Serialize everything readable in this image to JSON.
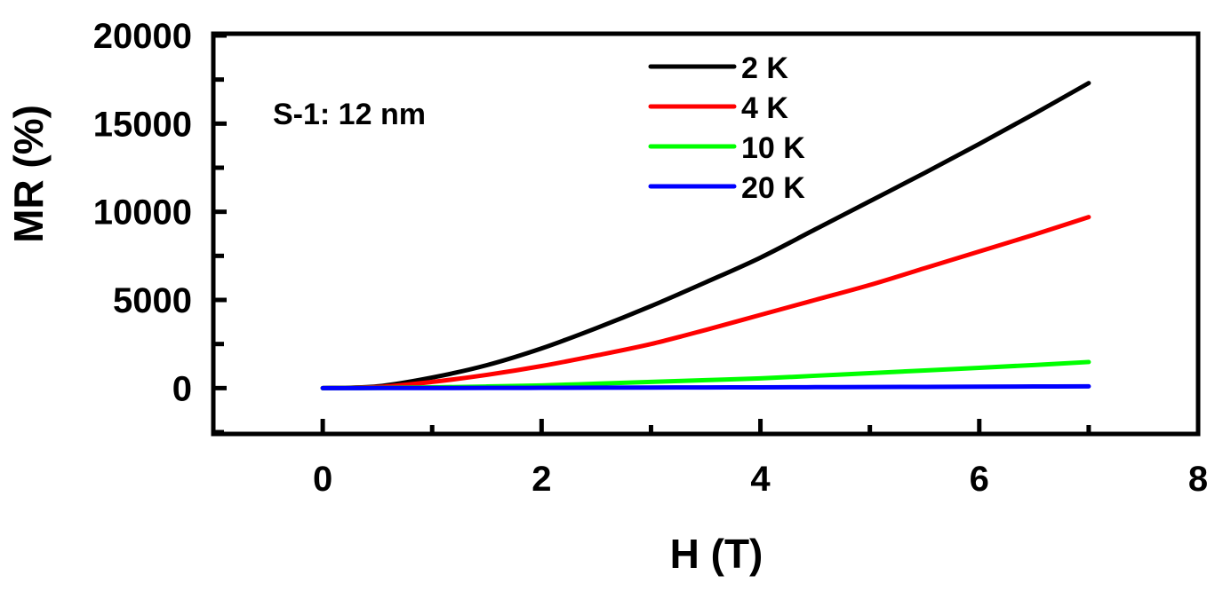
{
  "chart_data": {
    "type": "line",
    "title": "",
    "xlabel": "H (T)",
    "ylabel": "MR (%)",
    "xlim": [
      -1,
      8
    ],
    "ylim": [
      -2600,
      20100
    ],
    "xticks": [
      0,
      2,
      4,
      6,
      8
    ],
    "xtick_labels": [
      "0",
      "2",
      "4",
      "6",
      "8"
    ],
    "xminor": [
      1,
      3,
      5,
      7
    ],
    "yticks": [
      0,
      5000,
      10000,
      15000,
      20000
    ],
    "ytick_labels": [
      "0",
      "5000",
      "10000",
      "15000",
      "20000"
    ],
    "yminor": [
      -2500,
      2500,
      7500,
      12500,
      17500
    ],
    "grid": false,
    "legend_position": "top-center",
    "annotation": "S-1: 12 nm",
    "x": [
      0,
      0.5,
      1,
      1.5,
      2,
      2.5,
      3,
      3.5,
      4,
      4.5,
      5,
      5.5,
      6,
      6.5,
      7
    ],
    "series": [
      {
        "name": "2 K",
        "color": "#000000",
        "values": [
          0,
          100,
          600,
          1300,
          2250,
          3400,
          4650,
          6000,
          7400,
          9000,
          10600,
          12200,
          13850,
          15550,
          17300
        ]
      },
      {
        "name": "4 K",
        "color": "#ff0000",
        "values": [
          0,
          60,
          350,
          750,
          1250,
          1850,
          2500,
          3300,
          4150,
          5000,
          5850,
          6800,
          7750,
          8700,
          9700
        ]
      },
      {
        "name": "10 K",
        "color": "#00ff00",
        "values": [
          0,
          10,
          40,
          90,
          150,
          250,
          350,
          450,
          550,
          700,
          850,
          1000,
          1150,
          1310,
          1480
        ]
      },
      {
        "name": "20 K",
        "color": "#0000ff",
        "values": [
          0,
          2,
          5,
          10,
          15,
          22,
          30,
          38,
          45,
          52,
          60,
          70,
          80,
          90,
          100
        ]
      }
    ]
  }
}
